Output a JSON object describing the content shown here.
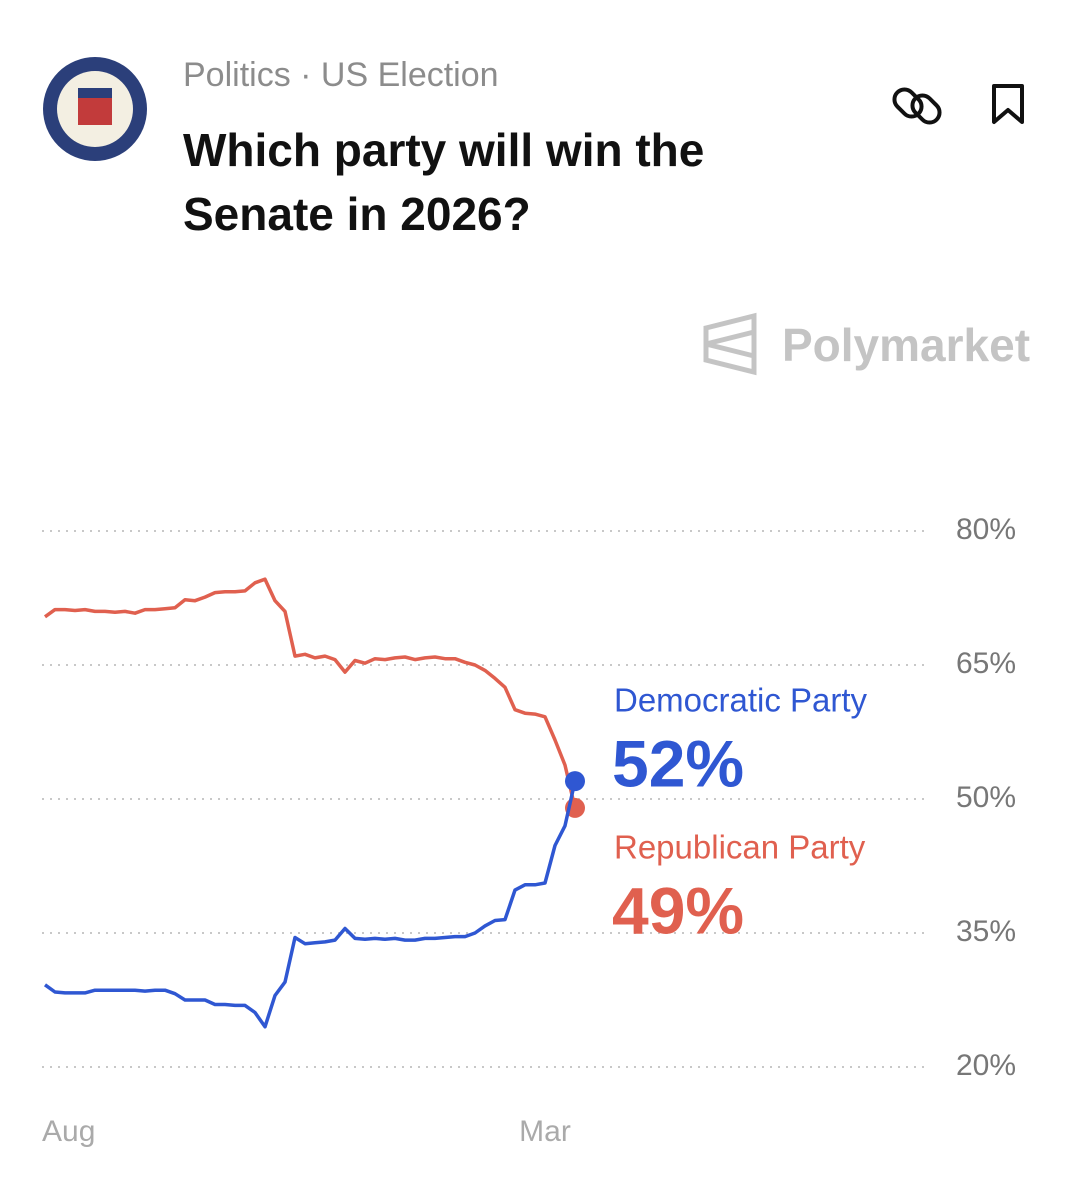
{
  "header": {
    "breadcrumb": "Politics · US Election",
    "title": "Which party will win the Senate in 2026?"
  },
  "brand": "Polymarket",
  "chart_data": {
    "type": "line",
    "grid": true,
    "categories": [
      "Aug",
      null,
      null,
      null,
      null,
      null,
      null,
      null,
      null,
      null,
      null,
      null,
      null,
      null,
      null,
      null,
      null,
      null,
      null,
      null,
      null,
      null,
      null,
      null,
      null,
      null,
      null,
      null,
      null,
      null,
      null,
      null,
      null,
      null,
      null,
      null,
      null,
      null,
      null,
      null,
      null,
      null,
      null,
      null,
      null,
      null,
      null,
      null,
      null,
      null,
      "Mar",
      null,
      null,
      null
    ],
    "ylim": [
      20,
      80
    ],
    "yticks": [
      {
        "value": 80,
        "label": "80%"
      },
      {
        "value": 65,
        "label": "65%"
      },
      {
        "value": 50,
        "label": "50%"
      },
      {
        "value": 35,
        "label": "35%"
      },
      {
        "value": 20,
        "label": "20%"
      }
    ],
    "series": [
      {
        "name": "Democratic Party",
        "color": "#2f57d2",
        "values": [
          29.2,
          28.4,
          28.3,
          28.3,
          28.3,
          28.6,
          28.6,
          28.6,
          28.6,
          28.6,
          28.5,
          28.6,
          28.6,
          28.2,
          27.5,
          27.5,
          27.5,
          27.0,
          27.0,
          26.9,
          26.9,
          26.1,
          24.5,
          28.0,
          29.5,
          34.5,
          33.8,
          33.9,
          34.0,
          34.2,
          35.5,
          34.4,
          34.3,
          34.4,
          34.3,
          34.4,
          34.2,
          34.2,
          34.4,
          34.4,
          34.5,
          34.6,
          34.6,
          35.0,
          35.8,
          36.4,
          36.5,
          39.8,
          40.4,
          40.4,
          40.6,
          44.8,
          47.0,
          52
        ],
        "value_labels": [
          null,
          null,
          null,
          null,
          null,
          null,
          null,
          null,
          null,
          null,
          null,
          null,
          null,
          null,
          null,
          null,
          null,
          null,
          null,
          null,
          null,
          null,
          null,
          null,
          null,
          null,
          null,
          null,
          null,
          null,
          null,
          null,
          null,
          null,
          null,
          null,
          null,
          null,
          null,
          null,
          null,
          null,
          null,
          null,
          null,
          null,
          null,
          null,
          null,
          null,
          null,
          null,
          null,
          "52%"
        ]
      },
      {
        "name": "Republican Party",
        "color": "#e0604f",
        "values": [
          70.4,
          71.2,
          71.2,
          71.1,
          71.2,
          71.0,
          71.0,
          70.9,
          71.0,
          70.8,
          71.2,
          71.2,
          71.3,
          71.4,
          72.3,
          72.2,
          72.6,
          73.1,
          73.2,
          73.2,
          73.3,
          74.2,
          74.6,
          72.2,
          71.0,
          66.0,
          66.2,
          65.8,
          66.0,
          65.6,
          64.2,
          65.5,
          65.2,
          65.7,
          65.6,
          65.8,
          65.9,
          65.6,
          65.8,
          65.9,
          65.7,
          65.7,
          65.3,
          65.0,
          64.4,
          63.5,
          62.5,
          60.0,
          59.6,
          59.5,
          59.2,
          56.6,
          53.8,
          49
        ],
        "value_labels": [
          null,
          null,
          null,
          null,
          null,
          null,
          null,
          null,
          null,
          null,
          null,
          null,
          null,
          null,
          null,
          null,
          null,
          null,
          null,
          null,
          null,
          null,
          null,
          null,
          null,
          null,
          null,
          null,
          null,
          null,
          null,
          null,
          null,
          null,
          null,
          null,
          null,
          null,
          null,
          null,
          null,
          null,
          null,
          null,
          null,
          null,
          null,
          null,
          null,
          null,
          null,
          null,
          null,
          "49%"
        ]
      }
    ]
  }
}
